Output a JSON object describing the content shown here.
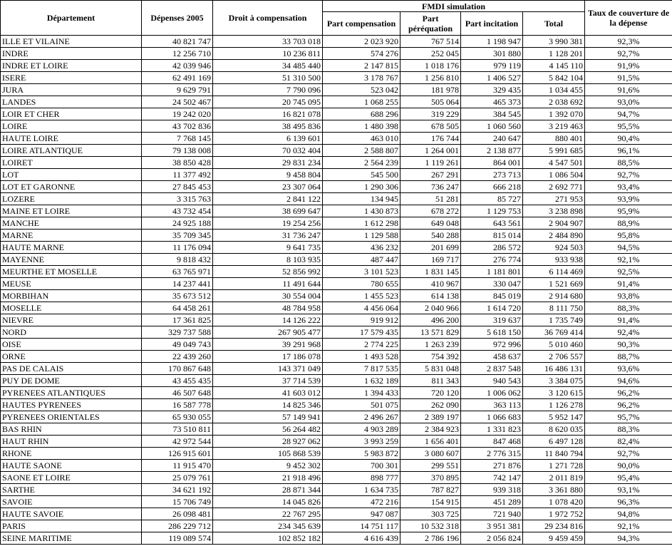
{
  "headers": {
    "departement": "Département",
    "depenses": "Dépenses 2005",
    "droit": "Droit à compensation",
    "fmdi": "FMDI simulation",
    "part_comp": "Part compensation",
    "part_perequation": "Part péréquation",
    "part_incitation": "Part incitation",
    "total": "Total",
    "taux": "Taux de couverture de la dépense"
  },
  "rows": [
    [
      "ILLE ET VILAINE",
      "40 821 747",
      "33 703 018",
      "2 023 920",
      "767 514",
      "1 198 947",
      "3 990 381",
      "92,3%"
    ],
    [
      "INDRE",
      "12 256 710",
      "10 236 811",
      "574 276",
      "252 045",
      "301 880",
      "1 128 201",
      "92,7%"
    ],
    [
      "INDRE ET LOIRE",
      "42 039 946",
      "34 485 440",
      "2 147 815",
      "1 018 176",
      "979 119",
      "4 145 110",
      "91,9%"
    ],
    [
      "ISERE",
      "62 491 169",
      "51 310 500",
      "3 178 767",
      "1 256 810",
      "1 406 527",
      "5 842 104",
      "91,5%"
    ],
    [
      "JURA",
      "9 629 791",
      "7 790 096",
      "523 042",
      "181 978",
      "329 435",
      "1 034 455",
      "91,6%"
    ],
    [
      "LANDES",
      "24 502 467",
      "20 745 095",
      "1 068 255",
      "505 064",
      "465 373",
      "2 038 692",
      "93,0%"
    ],
    [
      "LOIR ET CHER",
      "19 242 020",
      "16 821 078",
      "688 296",
      "319 229",
      "384 545",
      "1 392 070",
      "94,7%"
    ],
    [
      "LOIRE",
      "43 702 836",
      "38 495 836",
      "1 480 398",
      "678 505",
      "1 060 560",
      "3 219 463",
      "95,5%"
    ],
    [
      "HAUTE LOIRE",
      "7 768 145",
      "6 139 601",
      "463 010",
      "176 744",
      "240 647",
      "880 401",
      "90,4%"
    ],
    [
      "LOIRE ATLANTIQUE",
      "79 138 008",
      "70 032 404",
      "2 588 807",
      "1 264 001",
      "2 138 877",
      "5 991 685",
      "96,1%"
    ],
    [
      "LOIRET",
      "38 850 428",
      "29 831 234",
      "2 564 239",
      "1 119 261",
      "864 001",
      "4 547 501",
      "88,5%"
    ],
    [
      "LOT",
      "11 377 492",
      "9 458 804",
      "545 500",
      "267 291",
      "273 713",
      "1 086 504",
      "92,7%"
    ],
    [
      "LOT ET GARONNE",
      "27 845 453",
      "23 307 064",
      "1 290 306",
      "736 247",
      "666 218",
      "2 692 771",
      "93,4%"
    ],
    [
      "LOZERE",
      "3 315 763",
      "2 841 122",
      "134 945",
      "51 281",
      "85 727",
      "271 953",
      "93,9%"
    ],
    [
      "MAINE ET LOIRE",
      "43 732 454",
      "38 699 647",
      "1 430 873",
      "678 272",
      "1 129 753",
      "3 238 898",
      "95,9%"
    ],
    [
      "MANCHE",
      "24 925 188",
      "19 254 256",
      "1 612 298",
      "649 048",
      "643 561",
      "2 904 907",
      "88,9%"
    ],
    [
      "MARNE",
      "35 709 345",
      "31 736 247",
      "1 129 588",
      "540 288",
      "815 014",
      "2 484 890",
      "95,8%"
    ],
    [
      "HAUTE MARNE",
      "11 176 094",
      "9 641 735",
      "436 232",
      "201 699",
      "286 572",
      "924 503",
      "94,5%"
    ],
    [
      "MAYENNE",
      "9 818 432",
      "8 103 935",
      "487 447",
      "169 717",
      "276 774",
      "933 938",
      "92,1%"
    ],
    [
      "MEURTHE ET MOSELLE",
      "63 765 971",
      "52 856 992",
      "3 101 523",
      "1 831 145",
      "1 181 801",
      "6 114 469",
      "92,5%"
    ],
    [
      "MEUSE",
      "14 237 441",
      "11 491 644",
      "780 655",
      "410 967",
      "330 047",
      "1 521 669",
      "91,4%"
    ],
    [
      "MORBIHAN",
      "35 673 512",
      "30 554 004",
      "1 455 523",
      "614 138",
      "845 019",
      "2 914 680",
      "93,8%"
    ],
    [
      "MOSELLE",
      "64 458 261",
      "48 784 958",
      "4 456 064",
      "2 040 966",
      "1 614 720",
      "8 111 750",
      "88,3%"
    ],
    [
      "NIEVRE",
      "17 361 825",
      "14 126 222",
      "919 912",
      "496 200",
      "319 637",
      "1 735 749",
      "91,4%"
    ],
    [
      "NORD",
      "329 737 588",
      "267 905 477",
      "17 579 435",
      "13 571 829",
      "5 618 150",
      "36 769 414",
      "92,4%"
    ],
    [
      "OISE",
      "49 049 743",
      "39 291 968",
      "2 774 225",
      "1 263 239",
      "972 996",
      "5 010 460",
      "90,3%"
    ],
    [
      "ORNE",
      "22 439 260",
      "17 186 078",
      "1 493 528",
      "754 392",
      "458 637",
      "2 706 557",
      "88,7%"
    ],
    [
      "PAS DE CALAIS",
      "170 867 648",
      "143 371 049",
      "7 817 535",
      "5 831 048",
      "2 837 548",
      "16 486 131",
      "93,6%"
    ],
    [
      "PUY DE DOME",
      "43 455 435",
      "37 714 539",
      "1 632 189",
      "811 343",
      "940 543",
      "3 384 075",
      "94,6%"
    ],
    [
      "PYRENEES ATLANTIQUES",
      "46 507 648",
      "41 603 012",
      "1 394 433",
      "720 120",
      "1 006 062",
      "3 120 615",
      "96,2%"
    ],
    [
      "HAUTES PYRENEES",
      "16 587 778",
      "14 825 346",
      "501 075",
      "262 090",
      "363 113",
      "1 126 278",
      "96,2%"
    ],
    [
      "PYRENEES ORIENTALES",
      "65 930 055",
      "57 149 941",
      "2 496 267",
      "2 389 197",
      "1 066 683",
      "5 952 147",
      "95,7%"
    ],
    [
      "BAS RHIN",
      "73 510 811",
      "56 264 482",
      "4 903 289",
      "2 384 923",
      "1 331 823",
      "8 620 035",
      "88,3%"
    ],
    [
      "HAUT RHIN",
      "42 972 544",
      "28 927 062",
      "3 993 259",
      "1 656 401",
      "847 468",
      "6 497 128",
      "82,4%"
    ],
    [
      "RHONE",
      "126 915 601",
      "105 868 539",
      "5 983 872",
      "3 080 607",
      "2 776 315",
      "11 840 794",
      "92,7%"
    ],
    [
      "HAUTE SAONE",
      "11 915 470",
      "9 452 302",
      "700 301",
      "299 551",
      "271 876",
      "1 271 728",
      "90,0%"
    ],
    [
      "SAONE ET LOIRE",
      "25 079 761",
      "21 918 496",
      "898 777",
      "370 895",
      "742 147",
      "2 011 819",
      "95,4%"
    ],
    [
      "SARTHE",
      "34 621 192",
      "28 871 344",
      "1 634 735",
      "787 827",
      "939 318",
      "3 361 880",
      "93,1%"
    ],
    [
      "SAVOIE",
      "15 706 749",
      "14 045 826",
      "472 216",
      "154 915",
      "451 289",
      "1 078 420",
      "96,3%"
    ],
    [
      "HAUTE SAVOIE",
      "26 098 481",
      "22 767 295",
      "947 087",
      "303 725",
      "721 940",
      "1 972 752",
      "94,8%"
    ],
    [
      "PARIS",
      "286 229 712",
      "234 345 639",
      "14 751 117",
      "10 532 318",
      "3 951 381",
      "29 234 816",
      "92,1%"
    ],
    [
      "SEINE MARITIME",
      "119 089 574",
      "102 852 182",
      "4 616 439",
      "2 786 196",
      "2 056 824",
      "9 459 459",
      "94,3%"
    ]
  ]
}
